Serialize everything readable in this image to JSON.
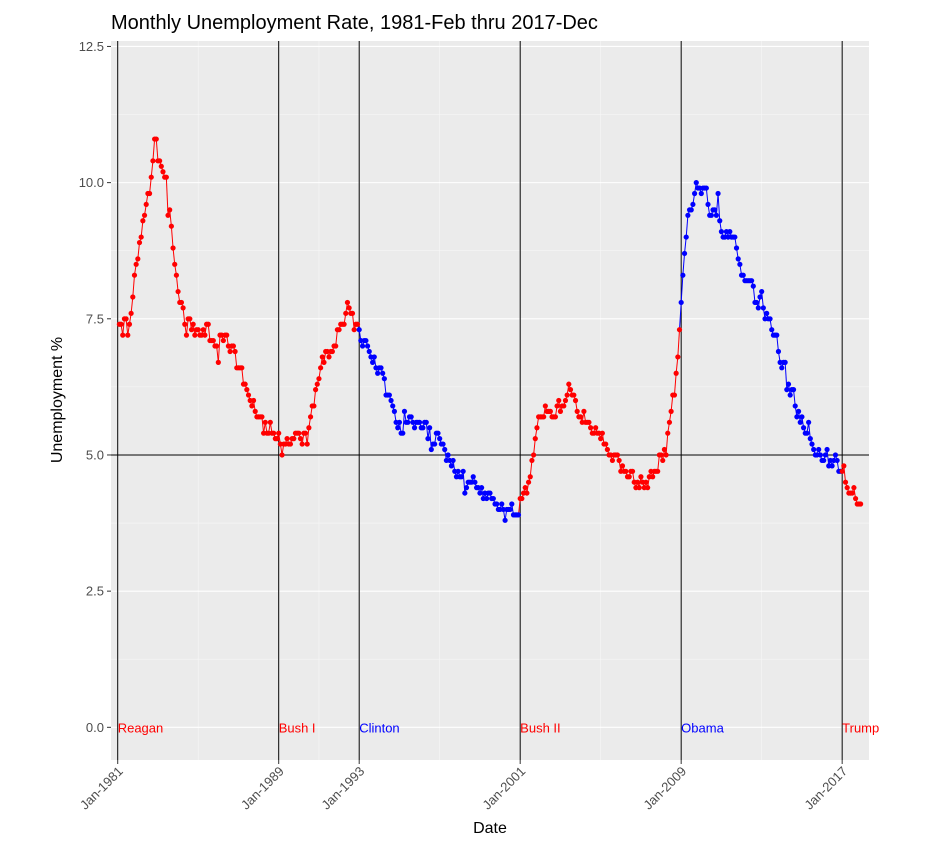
{
  "chart_data": {
    "type": "line",
    "title": "Monthly Unemployment Rate, 1981-Feb thru 2017-Dec",
    "xlabel": "Date",
    "ylabel": "Unemployment %",
    "xlim": [
      "1980-09-01",
      "2018-05-01"
    ],
    "ylim": [
      -0.6,
      12.6
    ],
    "y_ticks": [
      0.0,
      2.5,
      5.0,
      7.5,
      10.0,
      12.5
    ],
    "y_tick_labels": [
      "0.0",
      "2.5",
      "5.0",
      "7.5",
      "10.0",
      "12.5"
    ],
    "x_ticks": [
      "1981-01-01",
      "1989-01-01",
      "1993-01-01",
      "2001-01-01",
      "2009-01-01",
      "2017-01-01"
    ],
    "x_tick_labels": [
      "Jan-1981",
      "Jan-1989",
      "Jan-1993",
      "Jan-2001",
      "Jan-2009",
      "Jan-2017"
    ],
    "grid": true,
    "reference_line_y": 5.0,
    "colors": {
      "red": "#ff0000",
      "blue": "#0000ff",
      "panel": "#ebebeb",
      "grid": "#ffffff"
    },
    "presidents": [
      {
        "name": "Reagan",
        "start": "1981-01-01",
        "color": "#ff0000"
      },
      {
        "name": "Bush I",
        "start": "1989-01-01",
        "color": "#ff0000"
      },
      {
        "name": "Clinton",
        "start": "1993-01-01",
        "color": "#0000ff"
      },
      {
        "name": "Bush II",
        "start": "2001-01-01",
        "color": "#ff0000"
      },
      {
        "name": "Obama",
        "start": "2009-01-01",
        "color": "#0000ff"
      },
      {
        "name": "Trump",
        "start": "2017-01-01",
        "color": "#ff0000"
      }
    ],
    "series_start": "1981-02",
    "monthly_values": [
      7.4,
      7.4,
      7.2,
      7.5,
      7.5,
      7.2,
      7.4,
      7.6,
      7.9,
      8.3,
      8.5,
      8.6,
      8.9,
      9.0,
      9.3,
      9.4,
      9.6,
      9.8,
      9.8,
      10.1,
      10.4,
      10.8,
      10.8,
      10.4,
      10.4,
      10.3,
      10.2,
      10.1,
      10.1,
      9.4,
      9.5,
      9.2,
      8.8,
      8.5,
      8.3,
      8.0,
      7.8,
      7.8,
      7.7,
      7.4,
      7.2,
      7.5,
      7.5,
      7.3,
      7.4,
      7.2,
      7.3,
      7.3,
      7.2,
      7.2,
      7.3,
      7.2,
      7.4,
      7.4,
      7.1,
      7.1,
      7.1,
      7.0,
      7.0,
      6.7,
      7.2,
      7.2,
      7.1,
      7.2,
      7.2,
      7.0,
      6.9,
      7.0,
      7.0,
      6.9,
      6.6,
      6.6,
      6.6,
      6.6,
      6.3,
      6.3,
      6.2,
      6.1,
      6.0,
      5.9,
      6.0,
      5.8,
      5.7,
      5.7,
      5.7,
      5.7,
      5.4,
      5.6,
      5.4,
      5.4,
      5.6,
      5.4,
      5.4,
      5.3,
      5.3,
      5.4,
      5.2,
      5.0,
      5.2,
      5.2,
      5.3,
      5.2,
      5.2,
      5.3,
      5.3,
      5.4,
      5.4,
      5.4,
      5.3,
      5.2,
      5.4,
      5.4,
      5.2,
      5.5,
      5.7,
      5.9,
      5.9,
      6.2,
      6.3,
      6.4,
      6.6,
      6.8,
      6.7,
      6.9,
      6.9,
      6.8,
      6.9,
      6.9,
      7.0,
      7.0,
      7.3,
      7.3,
      7.4,
      7.4,
      7.4,
      7.6,
      7.8,
      7.7,
      7.6,
      7.6,
      7.3,
      7.4,
      7.4,
      7.3,
      7.1,
      7.0,
      7.1,
      7.1,
      7.0,
      6.9,
      6.8,
      6.7,
      6.8,
      6.6,
      6.5,
      6.6,
      6.6,
      6.5,
      6.4,
      6.1,
      6.1,
      6.1,
      6.0,
      5.9,
      5.8,
      5.6,
      5.5,
      5.6,
      5.4,
      5.4,
      5.8,
      5.6,
      5.6,
      5.7,
      5.7,
      5.6,
      5.5,
      5.6,
      5.6,
      5.6,
      5.5,
      5.5,
      5.6,
      5.6,
      5.3,
      5.5,
      5.1,
      5.2,
      5.2,
      5.4,
      5.4,
      5.3,
      5.2,
      5.2,
      5.1,
      4.9,
      5.0,
      4.9,
      4.8,
      4.9,
      4.7,
      4.6,
      4.7,
      4.6,
      4.6,
      4.7,
      4.3,
      4.4,
      4.5,
      4.5,
      4.5,
      4.6,
      4.5,
      4.4,
      4.4,
      4.3,
      4.4,
      4.2,
      4.3,
      4.2,
      4.3,
      4.3,
      4.2,
      4.2,
      4.1,
      4.1,
      4.0,
      4.0,
      4.1,
      4.0,
      3.8,
      4.0,
      4.0,
      4.0,
      4.1,
      3.9,
      3.9,
      3.9,
      3.9,
      4.2,
      4.2,
      4.3,
      4.4,
      4.3,
      4.5,
      4.6,
      4.9,
      5.0,
      5.3,
      5.5,
      5.7,
      5.7,
      5.7,
      5.7,
      5.9,
      5.8,
      5.8,
      5.8,
      5.7,
      5.7,
      5.7,
      5.9,
      6.0,
      5.8,
      5.9,
      5.9,
      6.0,
      6.1,
      6.3,
      6.2,
      6.1,
      6.1,
      6.0,
      5.8,
      5.7,
      5.7,
      5.6,
      5.8,
      5.6,
      5.6,
      5.6,
      5.5,
      5.4,
      5.4,
      5.5,
      5.4,
      5.4,
      5.3,
      5.4,
      5.2,
      5.2,
      5.1,
      5.0,
      5.0,
      4.9,
      5.0,
      5.0,
      5.0,
      4.9,
      4.7,
      4.8,
      4.7,
      4.7,
      4.6,
      4.6,
      4.7,
      4.7,
      4.5,
      4.4,
      4.5,
      4.4,
      4.6,
      4.5,
      4.4,
      4.5,
      4.4,
      4.6,
      4.7,
      4.6,
      4.7,
      4.7,
      4.7,
      5.0,
      5.0,
      4.9,
      5.1,
      5.0,
      5.4,
      5.6,
      5.8,
      6.1,
      6.1,
      6.5,
      6.8,
      7.3,
      7.8,
      8.3,
      8.7,
      9.0,
      9.4,
      9.5,
      9.5,
      9.6,
      9.8,
      10.0,
      9.9,
      9.9,
      9.8,
      9.9,
      9.9,
      9.9,
      9.6,
      9.4,
      9.4,
      9.5,
      9.5,
      9.4,
      9.8,
      9.3,
      9.1,
      9.0,
      9.0,
      9.1,
      9.0,
      9.1,
      9.0,
      9.0,
      9.0,
      8.8,
      8.6,
      8.5,
      8.3,
      8.3,
      8.2,
      8.2,
      8.2,
      8.2,
      8.2,
      8.1,
      7.8,
      7.8,
      7.7,
      7.9,
      8.0,
      7.7,
      7.5,
      7.6,
      7.5,
      7.5,
      7.3,
      7.2,
      7.2,
      7.2,
      6.9,
      6.7,
      6.6,
      6.7,
      6.7,
      6.2,
      6.3,
      6.1,
      6.2,
      6.2,
      5.9,
      5.7,
      5.8,
      5.6,
      5.7,
      5.5,
      5.4,
      5.4,
      5.6,
      5.3,
      5.2,
      5.1,
      5.0,
      5.0,
      5.1,
      5.0,
      4.9,
      4.9,
      5.0,
      5.1,
      4.8,
      4.9,
      4.8,
      4.9,
      5.0,
      4.9,
      4.7,
      4.7,
      4.7,
      4.8,
      4.5,
      4.4,
      4.3,
      4.3,
      4.3,
      4.4,
      4.2,
      4.1,
      4.1,
      4.1
    ]
  }
}
